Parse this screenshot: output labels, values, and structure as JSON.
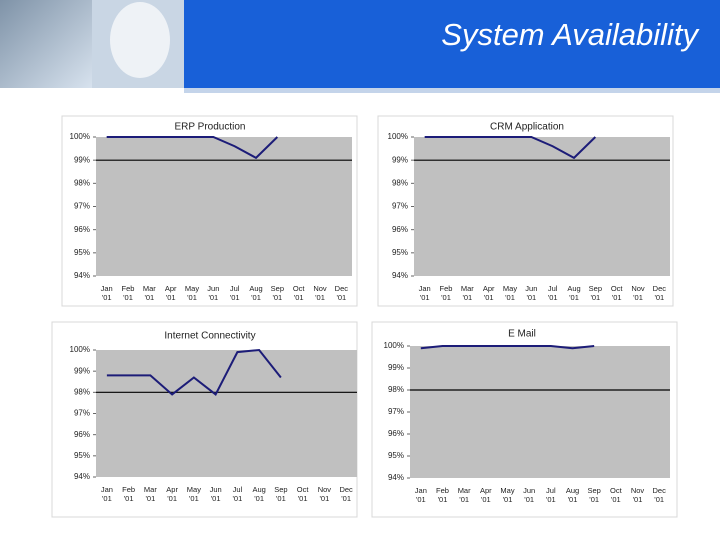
{
  "title": "System Availability",
  "chart_data": [
    {
      "type": "line",
      "title": "ERP Production",
      "categories": [
        "Jan\n'01",
        "Feb\n'01",
        "Mar\n'01",
        "Apr\n'01",
        "May\n'01",
        "Jun\n'01",
        "Jul\n'01",
        "Aug\n'01",
        "Sep\n'01",
        "Oct\n'01",
        "Nov\n'01",
        "Dec\n'01"
      ],
      "series": [
        {
          "color": "#1c1c78",
          "values": [
            100,
            100,
            100,
            100,
            100,
            100,
            99.6,
            99.1,
            100,
            null,
            null,
            null
          ]
        }
      ],
      "reference_line": 99,
      "ylim": [
        94,
        100
      ],
      "yticks": [
        {
          "value": 100,
          "label": "100%"
        },
        {
          "value": 99,
          "label": "99%"
        },
        {
          "value": 98,
          "label": "98%"
        },
        {
          "value": 97,
          "label": "97%"
        },
        {
          "value": 96,
          "label": "96%"
        },
        {
          "value": 95,
          "label": "95%"
        },
        {
          "value": 94,
          "label": "94%"
        }
      ]
    },
    {
      "type": "line",
      "title": "CRM Application",
      "categories": [
        "Jan\n'01",
        "Feb\n'01",
        "Mar\n'01",
        "Apr\n'01",
        "May\n'01",
        "Jun\n'01",
        "Jul\n'01",
        "Aug\n'01",
        "Sep\n'01",
        "Oct\n'01",
        "Nov\n'01",
        "Dec\n'01"
      ],
      "series": [
        {
          "color": "#1c1c78",
          "values": [
            100,
            100,
            100,
            100,
            100,
            100,
            99.6,
            99.1,
            100,
            null,
            null,
            null
          ]
        }
      ],
      "reference_line": 99,
      "ylim": [
        94,
        100
      ],
      "yticks": [
        {
          "value": 100,
          "label": "100%"
        },
        {
          "value": 99,
          "label": "99%"
        },
        {
          "value": 98,
          "label": "98%"
        },
        {
          "value": 97,
          "label": "97%"
        },
        {
          "value": 96,
          "label": "96%"
        },
        {
          "value": 95,
          "label": "95%"
        },
        {
          "value": 94,
          "label": "94%"
        }
      ]
    },
    {
      "type": "line",
      "title": "Internet Connectivity",
      "categories": [
        "Jan\n'01",
        "Feb\n'01",
        "Mar\n'01",
        "Apr\n'01",
        "May\n'01",
        "Jun\n'01",
        "Jul\n'01",
        "Aug\n'01",
        "Sep\n'01",
        "Oct\n'01",
        "Nov\n'01",
        "Dec\n'01"
      ],
      "series": [
        {
          "color": "#1c1c78",
          "values": [
            98.8,
            98.8,
            98.8,
            97.9,
            98.7,
            97.9,
            99.9,
            100,
            98.7,
            null,
            null,
            null
          ]
        }
      ],
      "reference_line": 98,
      "ylim": [
        94,
        100
      ],
      "yticks": [
        {
          "value": 100,
          "label": "100%"
        },
        {
          "value": 99,
          "label": "99%"
        },
        {
          "value": 98,
          "label": "98%"
        },
        {
          "value": 97,
          "label": "97%"
        },
        {
          "value": 96,
          "label": "96%"
        },
        {
          "value": 95,
          "label": "95%"
        },
        {
          "value": 94,
          "label": "94%"
        }
      ]
    },
    {
      "type": "line",
      "title": "E Mail",
      "categories": [
        "Jan\n'01",
        "Feb\n'01",
        "Mar\n'01",
        "Apr\n'01",
        "May\n'01",
        "Jun\n'01",
        "Jul\n'01",
        "Aug\n'01",
        "Sep\n'01",
        "Oct\n'01",
        "Nov\n'01",
        "Dec\n'01"
      ],
      "series": [
        {
          "color": "#1c1c78",
          "values": [
            99.9,
            100,
            100,
            100,
            100,
            100,
            100,
            99.9,
            100,
            null,
            null,
            null
          ]
        }
      ],
      "reference_line": 98,
      "ylim": [
        94,
        100
      ],
      "yticks": [
        {
          "value": 100,
          "label": "100%"
        },
        {
          "value": 99,
          "label": "99%"
        },
        {
          "value": 98,
          "label": "98%"
        },
        {
          "value": 97,
          "label": "97%"
        },
        {
          "value": 96,
          "label": "96%"
        },
        {
          "value": 95,
          "label": "95%"
        },
        {
          "value": 94,
          "label": "94%"
        }
      ]
    }
  ]
}
